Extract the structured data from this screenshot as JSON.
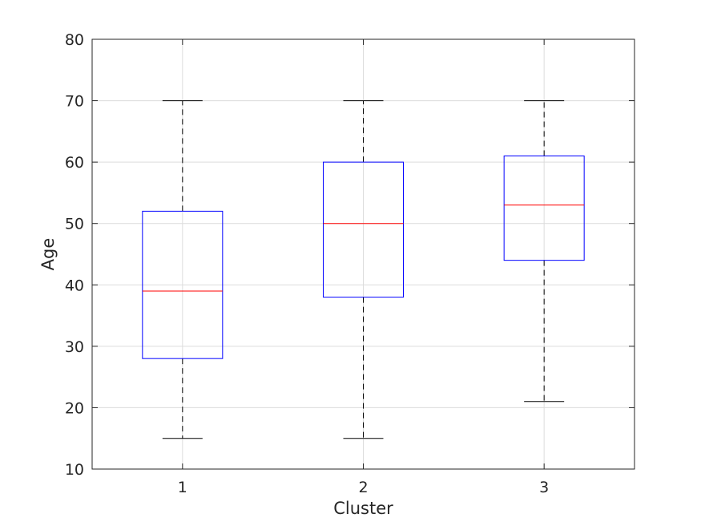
{
  "chart_data": {
    "type": "box",
    "xlabel": "Cluster",
    "ylabel": "Age",
    "ylim": [
      10,
      80
    ],
    "yticks": [
      10,
      20,
      30,
      40,
      50,
      60,
      70,
      80
    ],
    "categories": [
      "1",
      "2",
      "3"
    ],
    "boxes": [
      {
        "category": "1",
        "whisker_low": 15,
        "q1": 28,
        "median": 39,
        "q3": 52,
        "whisker_high": 70
      },
      {
        "category": "2",
        "whisker_low": 15,
        "q1": 38,
        "median": 50,
        "q3": 60,
        "whisker_high": 70
      },
      {
        "category": "3",
        "whisker_low": 21,
        "q1": 44,
        "median": 53,
        "q3": 61,
        "whisker_high": 70
      }
    ],
    "grid": true,
    "colors": {
      "box": "#0000ff",
      "median": "#ff0000",
      "whisker": "#000000",
      "grid": "#dcdcdc",
      "axis": "#262626"
    }
  }
}
